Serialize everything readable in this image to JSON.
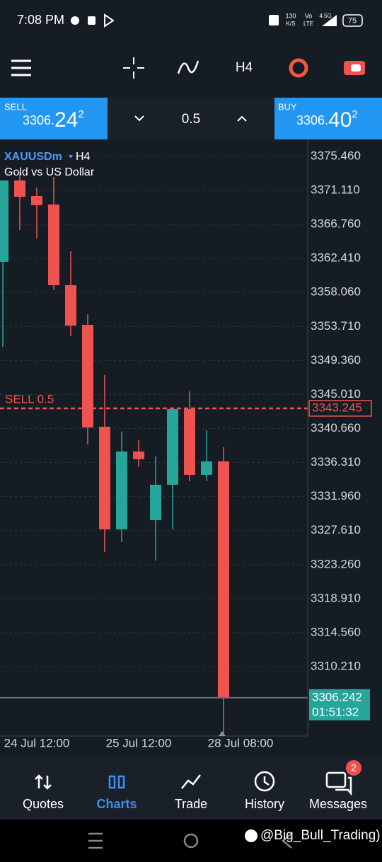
{
  "status_bar": {
    "time": "7:08 PM",
    "speed": "130",
    "speed_unit": "K/S",
    "network_1": "Vo",
    "network_2": "LTE",
    "network_3": "4.5G",
    "battery": "75"
  },
  "toolbar": {
    "timeframe": "H4"
  },
  "trade_bar": {
    "sell": {
      "label": "SELL",
      "price_prefix": "3306.",
      "price_big": "24",
      "price_sup": "2"
    },
    "volume": "0.5",
    "buy": {
      "label": "BUY",
      "price_prefix": "3306.",
      "price_big": "40",
      "price_sup": "2"
    }
  },
  "chart_data": {
    "type": "candlestick",
    "symbol": "XAUUSDm",
    "timeframe": "H4",
    "description": "Gold vs US Dollar",
    "categories": [
      null,
      null,
      "24 Jul 12:00",
      null,
      null,
      null,
      null,
      null,
      "25 Jul 12:00",
      null,
      null,
      null,
      null,
      null,
      "28 Jul 08:00"
    ],
    "open": [
      3361.98,
      3372.38,
      3370.39,
      3369.31,
      3358.99,
      3353.92,
      3340.89,
      3327.77,
      3337.72,
      3328.94,
      3333.47,
      3343.15,
      3334.74,
      3336.46,
      null
    ],
    "high": [
      3372.38,
      3373.47,
      3371.48,
      3372.84,
      3363.33,
      3355.28,
      3347.5,
      3340.26,
      3339.17,
      3337.09,
      3343.15,
      3345.41,
      3340.44,
      3338.27,
      null
    ],
    "low": [
      3351.1,
      3366.05,
      3364.96,
      3358.36,
      3352.47,
      3338.63,
      3324.87,
      3326.14,
      3335.73,
      3323.79,
      3327.77,
      3333.92,
      3333.92,
      3301.52,
      null
    ],
    "close": [
      3372.38,
      3370.3,
      3369.22,
      3358.99,
      3353.83,
      3340.8,
      3327.77,
      3337.72,
      3336.73,
      3333.47,
      3343.15,
      3334.74,
      3336.46,
      3306.14,
      null
    ],
    "up_color": "#26a69a",
    "down_color": "#ef5350",
    "ylim": [
      3301.34,
      3377.63
    ],
    "yticks": [
      {
        "value": 3375.46,
        "label": "3375.460"
      },
      {
        "value": 3371.11,
        "label": "3371.110"
      },
      {
        "value": 3366.76,
        "label": "3366.760"
      },
      {
        "value": 3362.41,
        "label": "3362.410"
      },
      {
        "value": 3358.06,
        "label": "3358.060"
      },
      {
        "value": 3353.71,
        "label": "3353.710"
      },
      {
        "value": 3349.36,
        "label": "3349.360"
      },
      {
        "value": 3345.01,
        "label": "3345.010"
      },
      {
        "value": 3340.66,
        "label": "3340.660"
      },
      {
        "value": 3336.31,
        "label": "3336.310"
      },
      {
        "value": 3331.96,
        "label": "3331.960"
      },
      {
        "value": 3327.61,
        "label": "3327.610"
      },
      {
        "value": 3323.26,
        "label": "3323.260"
      },
      {
        "value": 3318.91,
        "label": "3318.910"
      },
      {
        "value": 3314.56,
        "label": "3314.560"
      },
      {
        "value": 3310.21,
        "label": "3310.210"
      }
    ],
    "grid": true,
    "sell_line": {
      "label": "SELL 0.5",
      "value": 3343.245,
      "color": "#ef5350"
    },
    "last_price": {
      "value": 3306.242,
      "countdown": "01:51:32",
      "color": "#26a69a"
    }
  },
  "nav": {
    "items": [
      "Quotes",
      "Charts",
      "Trade",
      "History",
      "Messages"
    ],
    "active": 1,
    "badge": 2
  },
  "watermark": "@Big_Bull_Trading)"
}
